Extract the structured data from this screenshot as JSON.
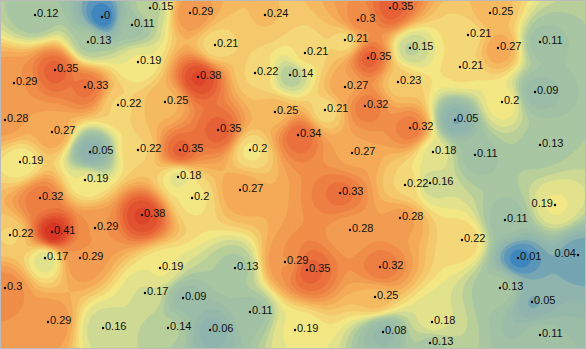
{
  "chart_data": {
    "type": "contour",
    "tick_labels": false,
    "data_labels": true,
    "marker": "dot",
    "xlim": [
      0,
      586
    ],
    "ylim": [
      0,
      349
    ],
    "x": [
      35,
      102,
      150,
      88,
      132,
      190,
      265,
      358,
      390,
      490,
      215,
      305,
      345,
      468,
      498,
      540,
      138,
      55,
      85,
      14,
      290,
      255,
      368,
      410,
      460,
      198,
      118,
      165,
      275,
      325,
      345,
      365,
      398,
      502,
      535,
      5,
      52,
      455,
      410,
      218,
      298,
      540,
      20,
      90,
      85,
      138,
      180,
      250,
      352,
      433,
      475,
      178,
      192,
      240,
      40,
      405,
      430,
      340,
      142,
      10,
      52,
      95,
      505,
      555,
      350,
      400,
      45,
      80,
      462,
      160,
      235,
      285,
      307,
      380,
      518,
      578,
      5,
      145,
      183,
      500,
      375,
      48,
      103,
      168,
      210,
      250,
      295,
      383,
      432,
      430,
      532,
      540
    ],
    "y": [
      15,
      17,
      8,
      42,
      25,
      13,
      15,
      20,
      8,
      13,
      45,
      53,
      40,
      35,
      48,
      42,
      62,
      70,
      87,
      83,
      75,
      73,
      58,
      48,
      67,
      77,
      105,
      102,
      112,
      110,
      87,
      106,
      82,
      102,
      92,
      120,
      132,
      120,
      128,
      130,
      135,
      145,
      162,
      152,
      180,
      150,
      150,
      150,
      153,
      152,
      155,
      177,
      198,
      190,
      198,
      185,
      183,
      193,
      215,
      235,
      232,
      228,
      220,
      205,
      230,
      218,
      258,
      258,
      240,
      268,
      268,
      262,
      270,
      267,
      258,
      255,
      288,
      293,
      298,
      288,
      297,
      322,
      328,
      328,
      330,
      312,
      330,
      332,
      322,
      343,
      302,
      335
    ],
    "values": [
      0.12,
      0,
      0.15,
      0.13,
      0.11,
      0.29,
      0.24,
      0.3,
      0.35,
      0.25,
      0.21,
      0.21,
      0.21,
      0.21,
      0.27,
      0.11,
      0.19,
      0.35,
      0.33,
      0.29,
      0.14,
      0.22,
      0.35,
      0.15,
      0.21,
      0.38,
      0.22,
      0.25,
      0.25,
      0.21,
      0.27,
      0.32,
      0.23,
      0.2,
      0.09,
      0.28,
      0.27,
      0.05,
      0.32,
      0.35,
      0.34,
      0.13,
      0.19,
      0.05,
      0.19,
      0.22,
      0.35,
      0.2,
      0.27,
      0.18,
      0.11,
      0.18,
      0.2,
      0.27,
      0.32,
      0.22,
      0.16,
      0.33,
      0.38,
      0.22,
      0.41,
      0.29,
      0.11,
      0.19,
      0.28,
      0.28,
      0.17,
      0.29,
      0.22,
      0.19,
      0.13,
      0.29,
      0.35,
      0.32,
      0.01,
      0.04,
      0.3,
      0.17,
      0.09,
      0.13,
      0.25,
      0.29,
      0.16,
      0.14,
      0.06,
      0.11,
      0.19,
      0.08,
      0.18,
      0.13,
      0.05,
      0.11
    ]
  }
}
